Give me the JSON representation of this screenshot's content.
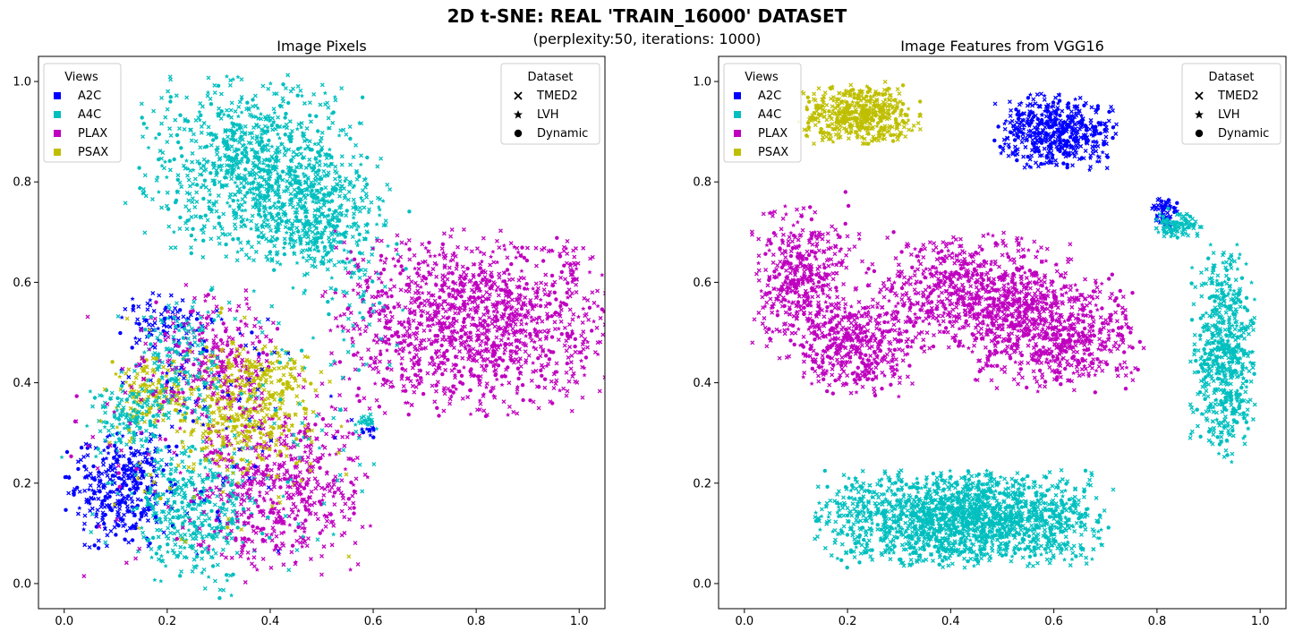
{
  "figure": {
    "title": "2D t-SNE: REAL 'TRAIN_16000' DATASET",
    "subtitle": "(perplexity:50, iterations: 1000)"
  },
  "colors": {
    "A2C": "#0000ff",
    "A4C": "#00bfbf",
    "PLAX": "#bf00bf",
    "PSAX": "#bfbf00"
  },
  "chart_data": [
    {
      "type": "scatter",
      "title": "Image Pixels",
      "xlim": [
        -0.05,
        1.05
      ],
      "ylim": [
        -0.05,
        1.05
      ],
      "xticks": [
        "0.0",
        "0.2",
        "0.4",
        "0.6",
        "0.8",
        "1.0"
      ],
      "yticks": [
        "0.0",
        "0.2",
        "0.4",
        "0.6",
        "0.8",
        "1.0"
      ],
      "grid": false,
      "legends": {
        "views": {
          "title": "Views",
          "placement": "top-left",
          "entries": [
            "A2C",
            "A4C",
            "PLAX",
            "PSAX"
          ]
        },
        "dataset": {
          "title": "Dataset",
          "placement": "top-right",
          "entries": [
            "TMED2",
            "LVH",
            "Dynamic"
          ]
        }
      },
      "clusters": [
        {
          "view": "A4C",
          "center": [
            0.36,
            0.83
          ],
          "spread": [
            0.1,
            0.085
          ],
          "n": 900
        },
        {
          "view": "A4C",
          "center": [
            0.49,
            0.73
          ],
          "spread": [
            0.065,
            0.06
          ],
          "n": 400
        },
        {
          "view": "PLAX",
          "center": [
            0.8,
            0.52
          ],
          "spread": [
            0.13,
            0.085
          ],
          "n": 1300
        },
        {
          "view": "A2C",
          "center": [
            0.11,
            0.19
          ],
          "spread": [
            0.05,
            0.055
          ],
          "n": 350
        },
        {
          "view": "A4C",
          "center": [
            0.25,
            0.14
          ],
          "spread": [
            0.055,
            0.07
          ],
          "n": 330
        },
        {
          "view": "PLAX",
          "center": [
            0.42,
            0.19
          ],
          "spread": [
            0.08,
            0.075
          ],
          "n": 500
        },
        {
          "view": "PSAX",
          "center": [
            0.35,
            0.33
          ],
          "spread": [
            0.06,
            0.055
          ],
          "n": 300
        },
        {
          "view": "PSAX",
          "center": [
            0.17,
            0.38
          ],
          "spread": [
            0.035,
            0.03
          ],
          "n": 120
        },
        {
          "view": "A4C",
          "center": [
            0.13,
            0.33
          ],
          "spread": [
            0.035,
            0.03
          ],
          "n": 120
        },
        {
          "view": "A2C",
          "center": [
            0.2,
            0.52
          ],
          "spread": [
            0.05,
            0.03
          ],
          "n": 80
        },
        {
          "view": "PLAX",
          "center": [
            0.28,
            0.45
          ],
          "spread": [
            0.06,
            0.06
          ],
          "n": 220
        },
        {
          "view": "A4C",
          "center": [
            0.22,
            0.44
          ],
          "spread": [
            0.04,
            0.06
          ],
          "n": 140
        },
        {
          "view": "PSAX",
          "center": [
            0.38,
            0.42
          ],
          "spread": [
            0.05,
            0.03
          ],
          "n": 110
        },
        {
          "view": "A4C",
          "center": [
            0.59,
            0.32
          ],
          "spread": [
            0.012,
            0.01
          ],
          "n": 25
        },
        {
          "view": "A2C",
          "center": [
            0.59,
            0.305
          ],
          "spread": [
            0.008,
            0.008
          ],
          "n": 12
        },
        {
          "view": "A2C",
          "center": [
            0.3,
            0.32
          ],
          "spread": [
            0.12,
            0.12
          ],
          "n": 80
        },
        {
          "view": "A4C",
          "center": [
            0.3,
            0.3
          ],
          "spread": [
            0.14,
            0.15
          ],
          "n": 160
        },
        {
          "view": "PSAX",
          "center": [
            0.3,
            0.3
          ],
          "spread": [
            0.13,
            0.13
          ],
          "n": 90
        },
        {
          "view": "PLAX",
          "center": [
            0.3,
            0.3
          ],
          "spread": [
            0.14,
            0.14
          ],
          "n": 140
        },
        {
          "view": "A4C",
          "center": [
            0.55,
            0.58
          ],
          "spread": [
            0.06,
            0.08
          ],
          "n": 70
        }
      ]
    },
    {
      "type": "scatter",
      "title": "Image Features from VGG16",
      "xlim": [
        -0.05,
        1.05
      ],
      "ylim": [
        -0.05,
        1.05
      ],
      "xticks": [
        "0.0",
        "0.2",
        "0.4",
        "0.6",
        "0.8",
        "1.0"
      ],
      "yticks": [
        "0.0",
        "0.2",
        "0.4",
        "0.6",
        "0.8",
        "1.0"
      ],
      "grid": false,
      "legends": {
        "views": {
          "title": "Views",
          "placement": "top-left",
          "entries": [
            "A2C",
            "A4C",
            "PLAX",
            "PSAX"
          ]
        },
        "dataset": {
          "title": "Dataset",
          "placement": "top-right",
          "entries": [
            "TMED2",
            "LVH",
            "Dynamic"
          ]
        }
      },
      "clusters": [
        {
          "view": "PSAX",
          "center": [
            0.225,
            0.935
          ],
          "spread": [
            0.055,
            0.028
          ],
          "n": 500
        },
        {
          "view": "A2C",
          "center": [
            0.605,
            0.9
          ],
          "spread": [
            0.055,
            0.035
          ],
          "n": 500
        },
        {
          "view": "A2C",
          "center": [
            0.815,
            0.74
          ],
          "spread": [
            0.012,
            0.015
          ],
          "n": 60
        },
        {
          "view": "A4C",
          "center": [
            0.845,
            0.715
          ],
          "spread": [
            0.022,
            0.015
          ],
          "n": 90
        },
        {
          "view": "PLAX",
          "center": [
            0.11,
            0.6
          ],
          "spread": [
            0.045,
            0.07
          ],
          "n": 450
        },
        {
          "view": "PLAX",
          "center": [
            0.22,
            0.47
          ],
          "spread": [
            0.05,
            0.045
          ],
          "n": 400
        },
        {
          "view": "PLAX",
          "center": [
            0.43,
            0.58
          ],
          "spread": [
            0.1,
            0.055
          ],
          "n": 700
        },
        {
          "view": "PLAX",
          "center": [
            0.6,
            0.5
          ],
          "spread": [
            0.08,
            0.055
          ],
          "n": 700
        },
        {
          "view": "A4C",
          "center": [
            0.93,
            0.46
          ],
          "spread": [
            0.03,
            0.1
          ],
          "n": 600
        },
        {
          "view": "A4C",
          "center": [
            0.42,
            0.13
          ],
          "spread": [
            0.13,
            0.045
          ],
          "n": 1800
        }
      ]
    }
  ]
}
